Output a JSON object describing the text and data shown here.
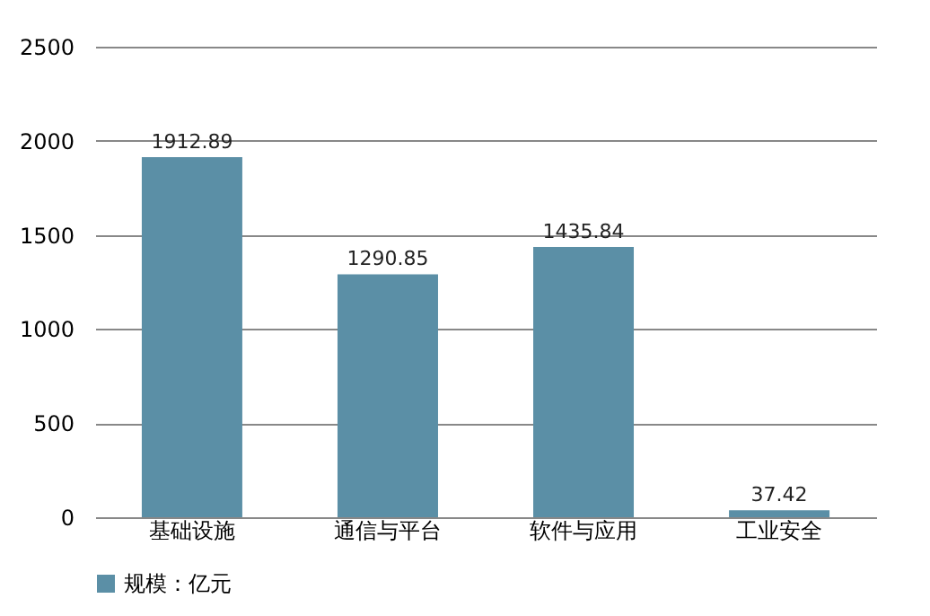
{
  "chart_data": {
    "type": "bar",
    "categories": [
      "基础设施",
      "通信与平台",
      "软件与应用",
      "工业安全"
    ],
    "series": [
      {
        "name": "规模：亿元",
        "color": "#5b8fa6",
        "values": [
          1912.89,
          1290.85,
          1435.84,
          37.42
        ]
      }
    ],
    "ylim": [
      0,
      2500
    ],
    "yticks": [
      0,
      500,
      1000,
      1500,
      2000,
      2500
    ],
    "grid": "y",
    "legend": "bottom",
    "data_labels": true
  }
}
